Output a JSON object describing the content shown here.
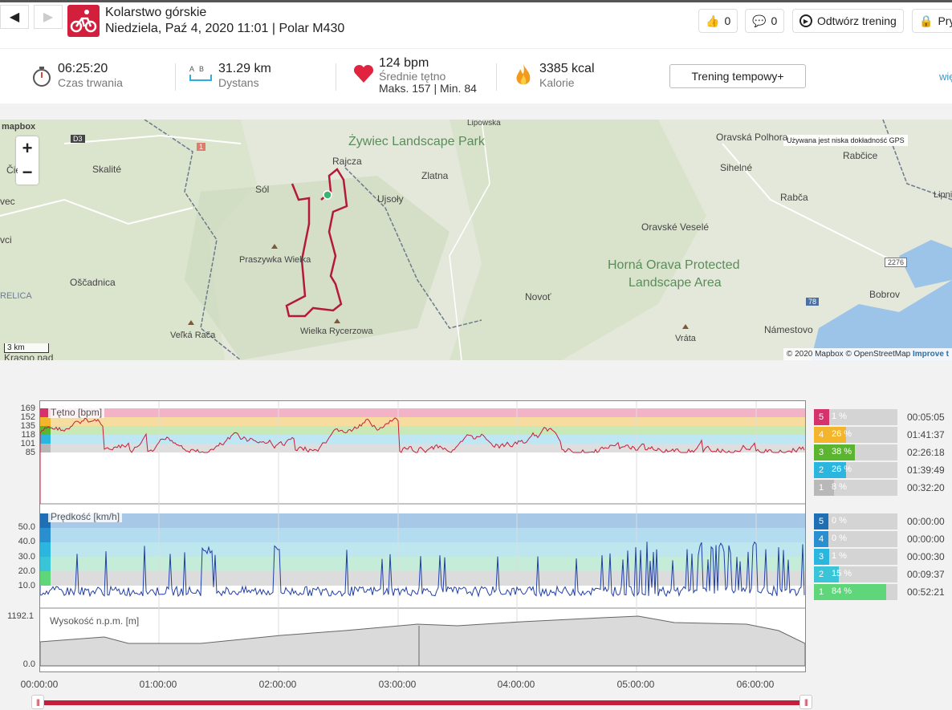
{
  "header": {
    "activity": "Kolarstwo górskie",
    "subtitle": "Niedziela, Paź 4, 2020 11:01 | Polar M430",
    "likes": "0",
    "comments": "0",
    "replay_label": "Odtwórz trening",
    "privacy_label": "Pry"
  },
  "stats": {
    "duration": {
      "value": "06:25:20",
      "label": "Czas trwania"
    },
    "distance": {
      "value": "31.29 km",
      "label": "Dystans",
      "ab": "A  B"
    },
    "heart": {
      "value": "124 bpm",
      "label": "Średnie tętno",
      "minmax": "Maks. 157  |  Min. 84"
    },
    "calories": {
      "value": "3385 kcal",
      "label": "Kalorie"
    },
    "tempo_button": "Trening tempowy+",
    "more_link": "wię"
  },
  "map": {
    "logo": "mapbox",
    "scale": "3 km",
    "gps_note": "Używana jest niska dokładność GPS",
    "attribution": "© 2020 Mapbox © OpenStreetMap",
    "improve": "Improve t",
    "parks": [
      "Żywiec Landscape Park",
      "Horná Orava Protected",
      "Landscape Area"
    ],
    "places": [
      "Lipowska",
      "Rajcza",
      "Zlatna",
      "Sól",
      "Skalité",
      "Ujsoły",
      "Praszywka Wielka",
      "Oščadnica",
      "Wielka Rycerzowa",
      "Veľká Rača",
      "Novoť",
      "Oravské Veselé",
      "Oravská Polhora",
      "Rabčice",
      "Sihelné",
      "Rabča",
      "Bobrov",
      "Námestovo",
      "Vrátа",
      "Čierne",
      "vec",
      "vci",
      "RELICA",
      "Krasno nad",
      "Lipnica",
      "D3",
      "1",
      "2276",
      "78"
    ]
  },
  "charts": {
    "hr": {
      "label": "Tętno [bpm]",
      "ticks": [
        "169",
        "152",
        "135",
        "118",
        "101",
        "85"
      ],
      "zones": [
        {
          "num": "5",
          "pct": "1 %",
          "time": "00:05:05",
          "color": "#d6336c",
          "fill": 0.01
        },
        {
          "num": "4",
          "pct": "26 %",
          "time": "01:41:37",
          "color": "#f2b52b",
          "fill": 0.26
        },
        {
          "num": "3",
          "pct": "38 %",
          "time": "02:26:18",
          "color": "#5cb531",
          "fill": 0.38
        },
        {
          "num": "2",
          "pct": "26 %",
          "time": "01:39:49",
          "color": "#2bb6df",
          "fill": 0.26
        },
        {
          "num": "1",
          "pct": "8 %",
          "time": "00:32:20",
          "color": "#b8b8b8",
          "fill": 0.08
        }
      ]
    },
    "speed": {
      "label": "Prędkość [km/h]",
      "ticks": [
        "50.0",
        "40.0",
        "30.0",
        "20.0",
        "10.0"
      ],
      "zones": [
        {
          "num": "5",
          "pct": "0 %",
          "time": "00:00:00",
          "color": "#1f6fb5",
          "fill": 0.0
        },
        {
          "num": "4",
          "pct": "0 %",
          "time": "00:00:00",
          "color": "#2a8fd0",
          "fill": 0.0
        },
        {
          "num": "3",
          "pct": "1 %",
          "time": "00:00:30",
          "color": "#2bb6df",
          "fill": 0.01
        },
        {
          "num": "2",
          "pct": "15 %",
          "time": "00:09:37",
          "color": "#39c4d8",
          "fill": 0.15
        },
        {
          "num": "1",
          "pct": "84 %",
          "time": "00:52:21",
          "color": "#5fd67a",
          "fill": 0.84
        }
      ]
    },
    "alt": {
      "label": "Wysokość n.p.m. [m]",
      "ticks": [
        "1192.1",
        "0.0"
      ]
    },
    "xticks": [
      "00:00:00",
      "01:00:00",
      "02:00:00",
      "03:00:00",
      "04:00:00",
      "05:00:00",
      "06:00:00"
    ]
  },
  "colors": {
    "accent": "#c41e3a",
    "hr_line": "#c41e3a",
    "speed_line": "#1f3fa8"
  }
}
